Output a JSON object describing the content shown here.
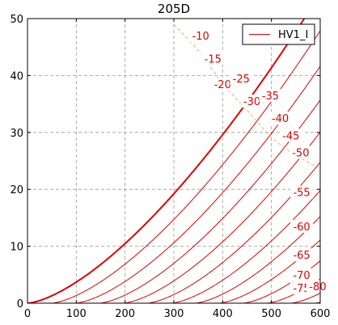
{
  "chart_data": {
    "type": "line",
    "title": "205D",
    "xlabel": "",
    "ylabel": "",
    "xlim": [
      0,
      600
    ],
    "ylim": [
      0,
      50
    ],
    "xticks": [
      0,
      100,
      200,
      300,
      400,
      500,
      600
    ],
    "yticks": [
      0,
      10,
      20,
      30,
      40,
      50
    ],
    "grid": true,
    "legend": {
      "position": "top-right",
      "entries": [
        "HV1_I"
      ]
    },
    "colors": {
      "curves": "#e00000",
      "loadline": "#f0b060",
      "grid": "#999999"
    },
    "family": {
      "exponent": 1.5,
      "k": 0.0037,
      "x_offset_per_volt": 9.8,
      "grid_voltages": [
        0,
        -5,
        -10,
        -15,
        -20,
        -25,
        -30,
        -35,
        -40,
        -45,
        -50,
        -55,
        -60,
        -65,
        -70,
        -75,
        -80
      ]
    },
    "series": [
      {
        "name": "HV1_I",
        "grid_voltage": "0"
      },
      {
        "grid_voltage": "-5"
      },
      {
        "grid_voltage": "-10"
      },
      {
        "grid_voltage": "-15"
      },
      {
        "grid_voltage": "-20"
      },
      {
        "grid_voltage": "-25"
      },
      {
        "grid_voltage": "-30"
      },
      {
        "grid_voltage": "-35"
      },
      {
        "grid_voltage": "-40"
      },
      {
        "grid_voltage": "-45"
      },
      {
        "grid_voltage": "-50"
      },
      {
        "grid_voltage": "-55"
      },
      {
        "grid_voltage": "-60"
      },
      {
        "grid_voltage": "-65"
      },
      {
        "grid_voltage": "-70"
      },
      {
        "grid_voltage": "-75"
      },
      {
        "grid_voltage": "-80"
      }
    ],
    "annotations": [
      {
        "text": "-10",
        "x": 355,
        "y": 47
      },
      {
        "text": "-15",
        "x": 380,
        "y": 43
      },
      {
        "text": "-20",
        "x": 400,
        "y": 38.5
      },
      {
        "text": "-25",
        "x": 438,
        "y": 39.5
      },
      {
        "text": "-30",
        "x": 460,
        "y": 35.5
      },
      {
        "text": "-35",
        "x": 498,
        "y": 36.5
      },
      {
        "text": "-40",
        "x": 518,
        "y": 32.5
      },
      {
        "text": "-45",
        "x": 540,
        "y": 29.5
      },
      {
        "text": "-50",
        "x": 560,
        "y": 26.5
      },
      {
        "text": "-55",
        "x": 562,
        "y": 19.5
      },
      {
        "text": "-60",
        "x": 562,
        "y": 13.5
      },
      {
        "text": "-65",
        "x": 562,
        "y": 8.5
      },
      {
        "text": "-70",
        "x": 562,
        "y": 5
      },
      {
        "text": "-75",
        "x": 562,
        "y": 2.7
      },
      {
        "text": "-80",
        "x": 595,
        "y": 3
      }
    ],
    "loadline": [
      [
        300,
        49
      ],
      [
        355,
        44
      ],
      [
        400,
        38.5
      ],
      [
        460,
        33
      ],
      [
        500,
        29
      ],
      [
        540,
        26.5
      ],
      [
        590,
        24
      ]
    ]
  }
}
